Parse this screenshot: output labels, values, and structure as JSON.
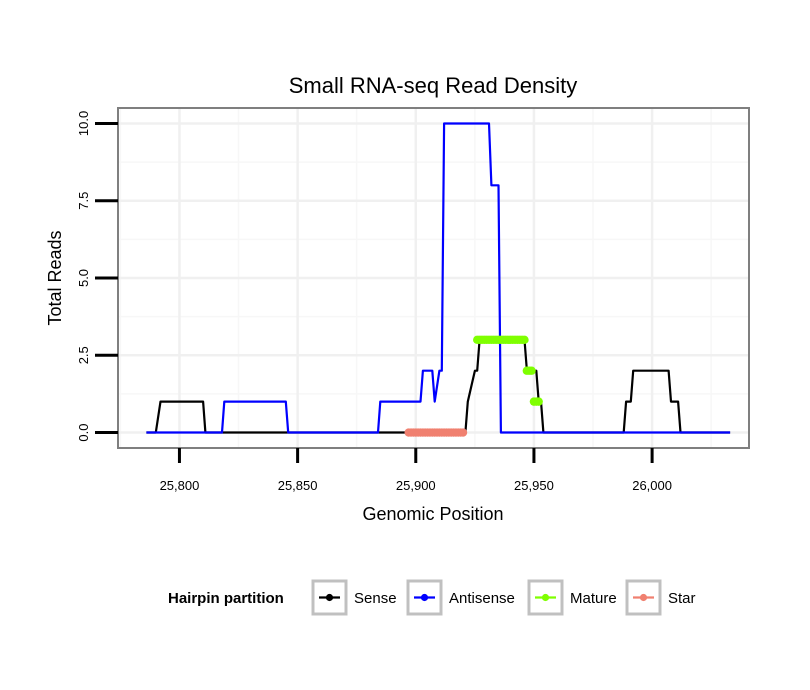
{
  "chart_data": {
    "type": "line",
    "title": "Small RNA-seq Read Density",
    "xlabel": "Genomic Position",
    "ylabel": "Total Reads",
    "xlim": [
      25774,
      26041
    ],
    "ylim": [
      -0.5,
      10.5
    ],
    "grid": true,
    "x_ticks": [
      25800,
      25850,
      25900,
      25950,
      26000
    ],
    "x_tick_labels": [
      "25,800",
      "25,850",
      "25,900",
      "25,950",
      "26,000"
    ],
    "y_ticks": [
      0,
      2.5,
      5,
      7.5,
      10
    ],
    "y_tick_labels": [
      "0.0",
      "2.5",
      "5.0",
      "7.5",
      "10.0"
    ],
    "legend": {
      "title": "Hairpin partition",
      "position": "bottom",
      "entries": [
        "Sense",
        "Antisense",
        "Mature",
        "Star"
      ]
    },
    "series": [
      {
        "name": "Sense",
        "color": "#000000",
        "style": "line",
        "x": [
          25786,
          25790,
          25792,
          25810,
          25811,
          25888,
          25894,
          25895,
          25898,
          25899,
          25920,
          25921,
          25922,
          25925,
          25926,
          25927,
          25933,
          25946,
          25947,
          25951,
          25952,
          25953,
          25954,
          25988,
          25989,
          25991,
          25992,
          26007,
          26008,
          26011,
          26012,
          26033
        ],
        "values": [
          0,
          0,
          1,
          1,
          0,
          0,
          0,
          0,
          0,
          0,
          0,
          0,
          1,
          2,
          2,
          3,
          3,
          3,
          2,
          2,
          1,
          1,
          0,
          0,
          1,
          1,
          2,
          2,
          1,
          1,
          0,
          0
        ]
      },
      {
        "name": "Antisense",
        "color": "#0000ff",
        "style": "line",
        "x": [
          25786,
          25818,
          25819,
          25845,
          25846,
          25884,
          25885,
          25902,
          25903,
          25907,
          25908,
          25910,
          25911,
          25912,
          25913,
          25931,
          25932,
          25935,
          25936,
          25937,
          26033
        ],
        "values": [
          0,
          0,
          1,
          1,
          0,
          0,
          1,
          1,
          2,
          2,
          1,
          2,
          2,
          10,
          10,
          10,
          8,
          8,
          0,
          0,
          0
        ]
      },
      {
        "name": "Mature",
        "color": "#7fff00",
        "style": "points",
        "x": [
          25926,
          25927,
          25928,
          25929,
          25930,
          25931,
          25932,
          25933,
          25934,
          25935,
          25936,
          25937,
          25938,
          25939,
          25940,
          25941,
          25942,
          25943,
          25944,
          25945,
          25946,
          25947,
          25948,
          25949,
          25950,
          25951,
          25952
        ],
        "values": [
          3,
          3,
          3,
          3,
          3,
          3,
          3,
          3,
          3,
          3,
          3,
          3,
          3,
          3,
          3,
          3,
          3,
          3,
          3,
          3,
          3,
          2,
          2,
          2,
          1,
          1,
          1
        ]
      },
      {
        "name": "Star",
        "color": "#f08070",
        "style": "points",
        "x": [
          25897,
          25898,
          25899,
          25900,
          25901,
          25902,
          25903,
          25904,
          25905,
          25906,
          25907,
          25908,
          25909,
          25910,
          25911,
          25912,
          25913,
          25914,
          25915,
          25916,
          25917,
          25918,
          25919,
          25920
        ],
        "values": [
          0,
          0,
          0,
          0,
          0,
          0,
          0,
          0,
          0,
          0,
          0,
          0,
          0,
          0,
          0,
          0,
          0,
          0,
          0,
          0,
          0,
          0,
          0,
          0
        ]
      }
    ]
  }
}
